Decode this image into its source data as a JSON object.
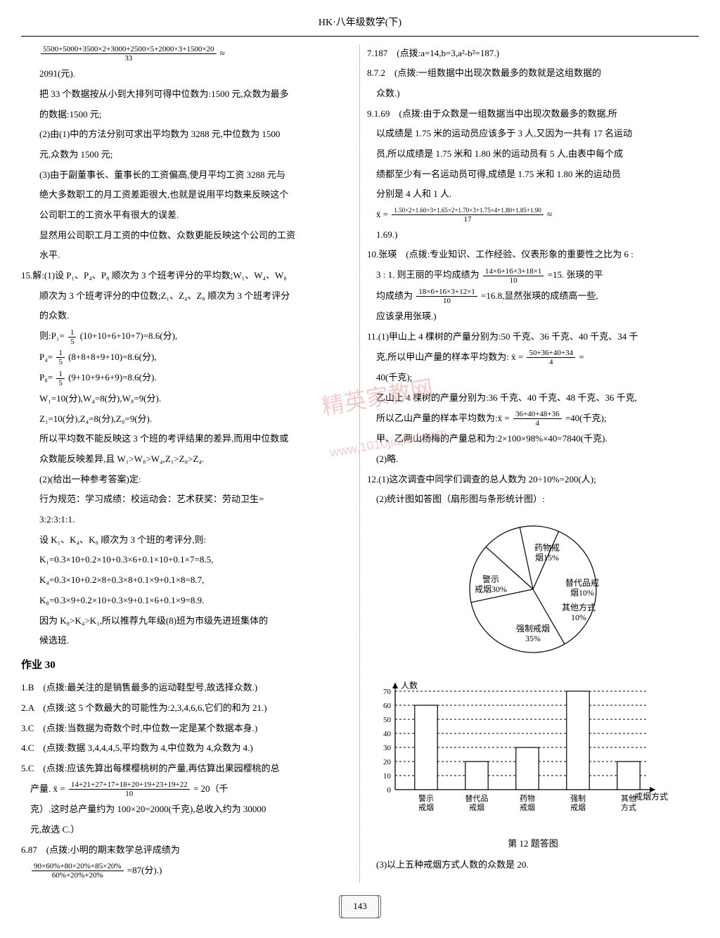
{
  "header": "HK·八年级数学(下)",
  "page_number": "143",
  "watermark": {
    "line1": "精英家教网",
    "line2": "www.1010jiajiao.com"
  },
  "left_col": {
    "l1_frac_num": "5500+5000+3500×2+3000+2500×5+2000×3+1500×20",
    "l1_frac_den": "33",
    "l1_approx": "≈",
    "l2": "2091(元).",
    "l3": "把 33 个数据按从小到大排列可得中位数为:1500 元,众数为最多",
    "l4": "的数据:1500 元;",
    "l5": "(2)由(1)中的方法分别可求出平均数为 3288 元,中位数为 1500",
    "l6": "元,众数为 1500 元;",
    "l7": "(3)由于副董事长、董事长的工资偏高,使月平均工资 3288 元与",
    "l8": "绝大多数职工的月工资差距很大,也就是说用平均数来反映这个",
    "l9": "公司职工的工资水平有很大的误差.",
    "l10": "显然用公司职工月工资的中位数、众数更能反映这个公司的工资",
    "l11": "水平.",
    "q15_head": "15.解:(1)设 P₁、P₄、P₈ 顺次为 3 个班考评分的平均数;W₁、W₄、W₈",
    "q15_a": "顺次为 3 个班考评分的中位数;Z₁、Z₄、Z₈ 顺次为 3 个班考评分",
    "q15_b": "的众数.",
    "q15_p1a": "则:P₁=",
    "q15_p1b": "(10+10+6+10+7)=8.6(分),",
    "q15_p4a": "P₄=",
    "q15_p4b": "(8+8+8+9+10)=8.6(分),",
    "q15_p8a": "P₈=",
    "q15_p8b": "(9+10+9+6+9)=8.6(分).",
    "q15_w": "W₁=10(分),W₄=8(分),W₈=9(分).",
    "q15_z": "Z₁=10(分),Z₄=8(分),Z₈=9(分).",
    "q15_c": "所以平均数不能反映这 3 个班的考评结果的差异,而用中位数或",
    "q15_d": "众数能反映差异,且 W₁>W₈>W₄,Z₁>Z₈>Z₄.",
    "q15_2a": "(2)(给出一种参考答案)定:",
    "q15_2b": "行为规范：学习成绩：校运动会：艺术获奖：劳动卫生=",
    "q15_2c": "3:2:3:1:1.",
    "q15_2d": "设 K₁、K₄、K₈ 顺次为 3 个班的考评分,则:",
    "q15_k1": "K₁=0.3×10+0.2×10+0.3×6+0.1×10+0.1×7=8.5,",
    "q15_k4": "K₄=0.3×10+0.2×8+0.3×8+0.1×9+0.1×8=8.7,",
    "q15_k8": "K₈=0.3×9+0.2×10+0.3×9+0.1×6+0.1×9=8.9.",
    "q15_e": "因为 K₈>K₄>K₁,所以推荐九年级(8)班为市级先进班集体的",
    "q15_f": "候选班.",
    "hw30": "作业 30",
    "a1": "1.B　(点拨:最关注的是销售最多的运动鞋型号,故选择众数.)",
    "a2": "2.A　(点拨:这 5 个数最大的可能性为:2,3,4,6,6,它们的和为 21.)",
    "a3": "3.C　(点拨:当数据为奇数个时,中位数一定是某个数据本身.)",
    "a4": "4.C　(点拨:数据 3,4,4,4,5,平均数为 4,中位数为 4,众数为 4.)",
    "a5": "5.C　(点拨:应该先算出每棵樱桃树的产量,再估算出果园樱桃的总",
    "a5b_pre": "产量. x̄ =",
    "a5b_num": "14+21+27+17+18+20+19+23+19+22",
    "a5b_den": "10",
    "a5b_post": "= 20（千",
    "a5c": "克）.这时总产量约为 100×20=2000(千克),总收入约为 30000",
    "a5d": "元,故选 C.）",
    "a6": "6.87　(点拨:小明的期末数学总评成绩为",
    "a6b_num": "90×60%+80×20%+85×20%",
    "a6b_den": "60%+20%+20%",
    "a6b_post": "=87(分).)"
  },
  "right_col": {
    "a7": "7.187　(点拨:a=14,b=3,a²-b²=187.)",
    "a8": "8.7.2　(点拨:一组数据中出现次数最多的数就是这组数据的",
    "a8b": "众数.)",
    "a9": "9.1.69　(点拨:由于众数是一组数据当中出现次数最多的数据,所",
    "a9b": "以成绩是 1.75 米的运动员应该多于 3 人,又因为一共有 17 名运动",
    "a9c": "员,所以成绩是 1.75 米和 1.80 米的运动员有 5 人,由表中每个成",
    "a9d": "绩都至少有一名运动员可得,成绩是 1.75 米和 1.80 米的运动员",
    "a9e": "分别是 4 人和 1 人.",
    "a9f_pre": "x̄ =",
    "a9f_num": "1.50×2+1.60×3+1.65×2+1.70×3+1.75×4+1.80+1.85+1.90",
    "a9f_den": "17",
    "a9f_post": "≈",
    "a9g": "1.69.)",
    "a10": "10.张瑛　(点拨:专业知识、工作经验、仪表形象的重要性之比为 6 :",
    "a10b_pre": "3 : 1. 则王丽的平均成绩为",
    "a10b_num": "14×6+16×3+18×1",
    "a10b_den": "10",
    "a10b_post": "=15. 张瑛的平",
    "a10c_pre": "均成绩为",
    "a10c_num": "18×6+16×3+12×1",
    "a10c_den": "10",
    "a10c_post": "=16.8,显然张瑛的成绩高一些,",
    "a10d": "应该录用张瑛.)",
    "a11": "11.(1)甲山上 4 棵树的产量分别为:50 千克、36 千克、40 千克、34 千",
    "a11b_pre": "克,所以甲山产量的样本平均数为: x̄ =",
    "a11b_num": "50+36+40+34",
    "a11b_den": "4",
    "a11b_post": "=",
    "a11c": "40(千克);",
    "a11d": "乙山上 4 棵树的产量分别为:36 千克、40 千克、48 千克、36 千克,",
    "a11e_pre": "所以乙山产量的样本平均数为:x̄ =",
    "a11e_num": "36+40+48+36",
    "a11e_den": "4",
    "a11e_post": "=40(千克);",
    "a11f": "甲、乙两山杨梅的产量总和为:2×100×98%×40=7840(千克).",
    "a11g": "(2)略.",
    "a12": "12.(1)这次调查中同学们调查的总人数为 20÷10%=200(人);",
    "a12b": "(2)统计图如答图（扇形图与条形统计图）:",
    "fig_caption": "第 12 题答图",
    "a12c": "(3)以上五种戒烟方式人数的众数是 20."
  },
  "pie": {
    "labels": {
      "warn": "警示\n戒烟30%",
      "drug": "药物戒\n烟15%",
      "sub": "替代品戒\n烟10%",
      "other": "其他方式\n10%",
      "force": "强制戒烟\n35%"
    },
    "slices": [
      {
        "label": "warn",
        "pct": 30,
        "start": 150
      },
      {
        "label": "drug",
        "pct": 15,
        "start": 258
      },
      {
        "label": "sub",
        "pct": 10,
        "start": 312
      },
      {
        "label": "other",
        "pct": 10,
        "start": 348
      },
      {
        "label": "force",
        "pct": 35,
        "start": 24
      }
    ],
    "stroke": "#000000",
    "fill": "#ffffff",
    "radius": 90
  },
  "bar": {
    "y_label": "人数",
    "x_label": "戒烟方式",
    "y_max": 70,
    "y_step": 10,
    "categories": [
      "警示\n戒烟",
      "替代品\n戒烟",
      "药物\n戒烟",
      "强制\n戒烟",
      "其他\n方式"
    ],
    "values": [
      60,
      20,
      30,
      70,
      20
    ],
    "bar_fill": "#ffffff",
    "bar_stroke": "#000000",
    "grid_dash": "3,3",
    "axis_color": "#000000"
  }
}
